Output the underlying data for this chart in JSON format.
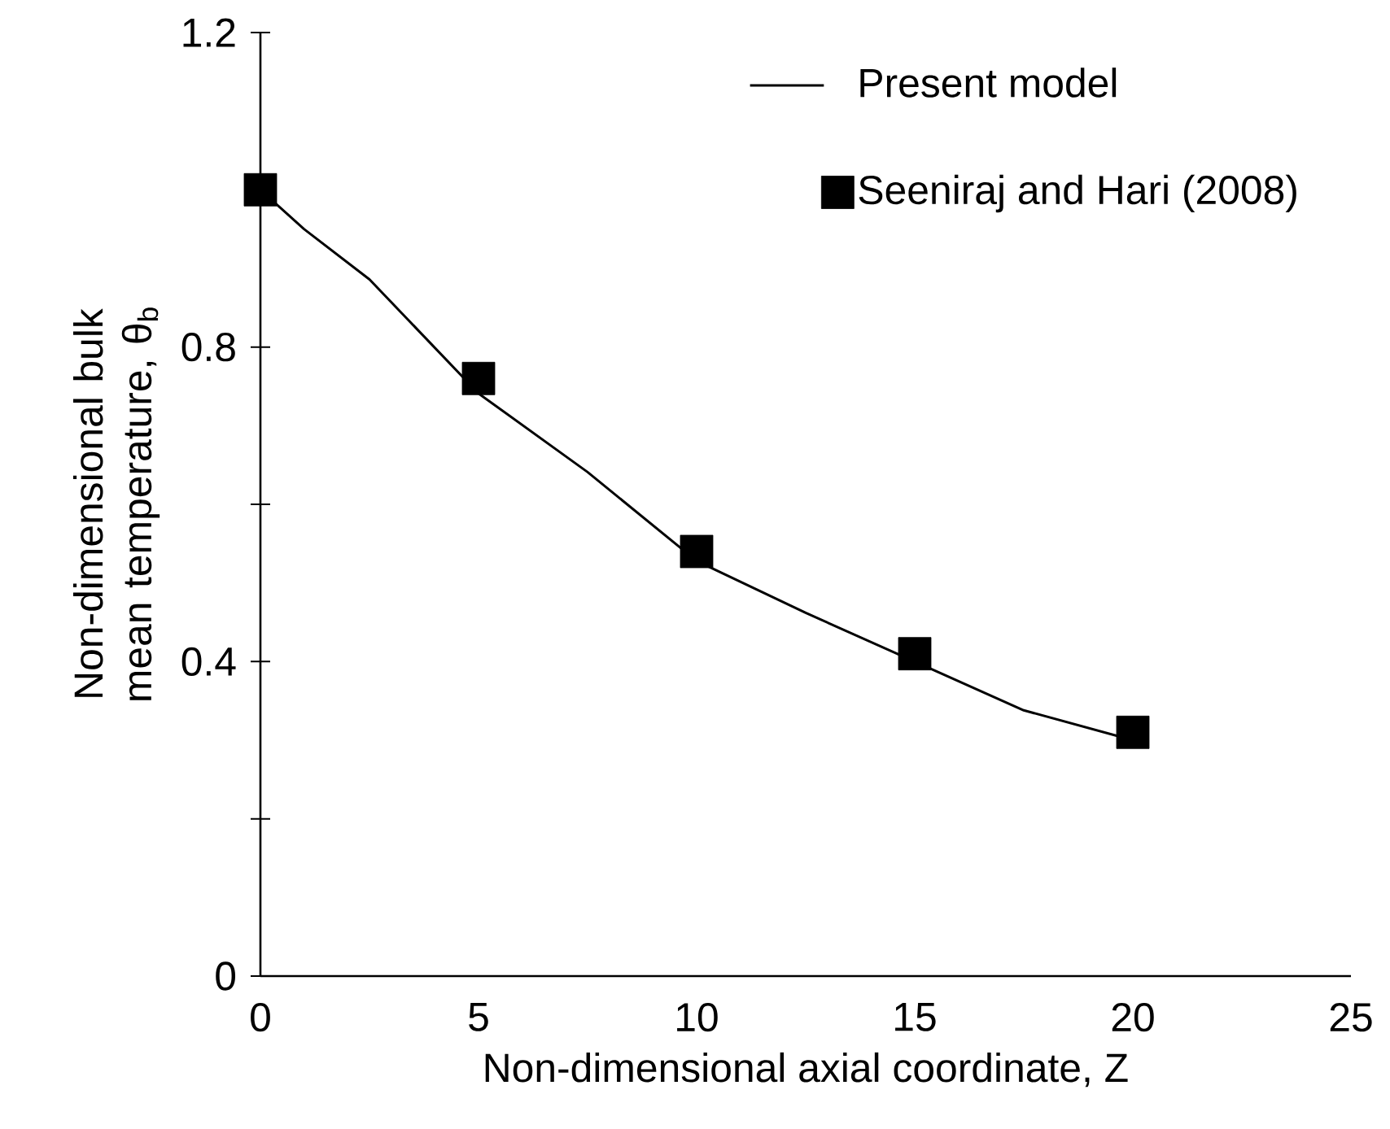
{
  "chart_data": {
    "type": "line",
    "xlabel": "Non-dimensional axial coordinate, Z",
    "ylabel": "Non-dimensional bulk mean temperature, θ$_{b}$",
    "xlim": [
      0,
      25
    ],
    "ylim": [
      0,
      1.2
    ],
    "xticks": [
      0,
      5,
      10,
      15,
      20,
      25
    ],
    "yticks": [
      0,
      {
        "value": 0.2,
        "label": null
      },
      0.4,
      {
        "value": 0.6,
        "label": null
      },
      0.8,
      {
        "value": 1.0,
        "label": null
      },
      1.2
    ],
    "grid": false,
    "legend": "top right",
    "series": [
      {
        "name": "Present model",
        "type": "line",
        "color": "#000000",
        "marker": "none",
        "line_style": "solid",
        "x": [
          0,
          1,
          2.5,
          5,
          7.5,
          10,
          12.5,
          15,
          17.5,
          20
        ],
        "values": [
          1.0,
          0.95,
          0.886,
          0.741,
          0.641,
          0.528,
          0.462,
          0.4,
          0.338,
          0.3
        ]
      },
      {
        "name": "Seeniraj and Hari (2008)",
        "type": "scatter",
        "color": "#000000",
        "marker": "square",
        "x": [
          0,
          5,
          10,
          15,
          20
        ],
        "values": [
          1.0,
          0.76,
          0.54,
          0.41,
          0.31
        ]
      }
    ]
  }
}
